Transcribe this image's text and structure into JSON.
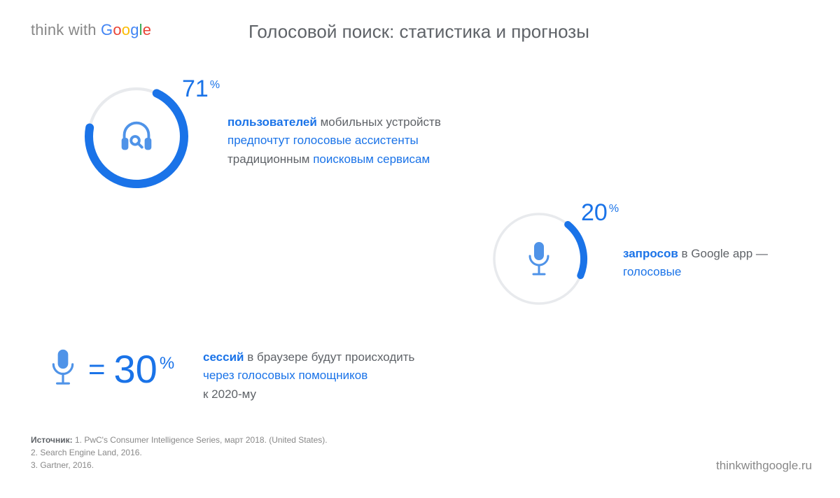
{
  "logo": {
    "prefix": "think with ",
    "brand": "Google"
  },
  "title": "Голосовой поиск: статистика и прогнозы",
  "colors": {
    "accent": "#1a73e8",
    "ring_track": "#e8eaed",
    "text_muted": "#5f6368",
    "icon": "#4f93e8"
  },
  "stat1": {
    "percent": 71,
    "percent_label": "71",
    "ring": {
      "size": 150,
      "stroke": 12,
      "track_color": "#e8eaed",
      "fill_color": "#1a73e8",
      "start_angle_deg": -65
    },
    "icon": "headphones-search",
    "desc": {
      "l1a": "пользователей",
      "l1b": " мобильных устройств",
      "l2": "предпочтут голосовые ассистенты",
      "l3a": "традиционным ",
      "l3b": "поисковым сервисам"
    }
  },
  "stat2": {
    "percent": 20,
    "percent_label": "20",
    "ring": {
      "size": 140,
      "stroke": 10,
      "track_color": "#e8eaed",
      "fill_color": "#1a73e8",
      "start_angle_deg": -50
    },
    "icon": "microphone",
    "desc": {
      "l1a": "запросов",
      "l1b": " в Google app —",
      "l2": "голосовые"
    }
  },
  "stat3": {
    "percent_label": "30",
    "equals": "=",
    "icon": "microphone",
    "desc": {
      "l1a": "сессий",
      "l1b": " в браузере будут происходить",
      "l2": "через голосовых помощников",
      "l3": "к 2020-му"
    }
  },
  "sources": {
    "label": "Источник:",
    "s1": " 1. PwC's Consumer Intelligence Series, март 2018. (United States).",
    "s2": "2. Search Engine Land, 2016.",
    "s3": "3. Gartner, 2016."
  },
  "footer_url": "thinkwithgoogle.ru"
}
